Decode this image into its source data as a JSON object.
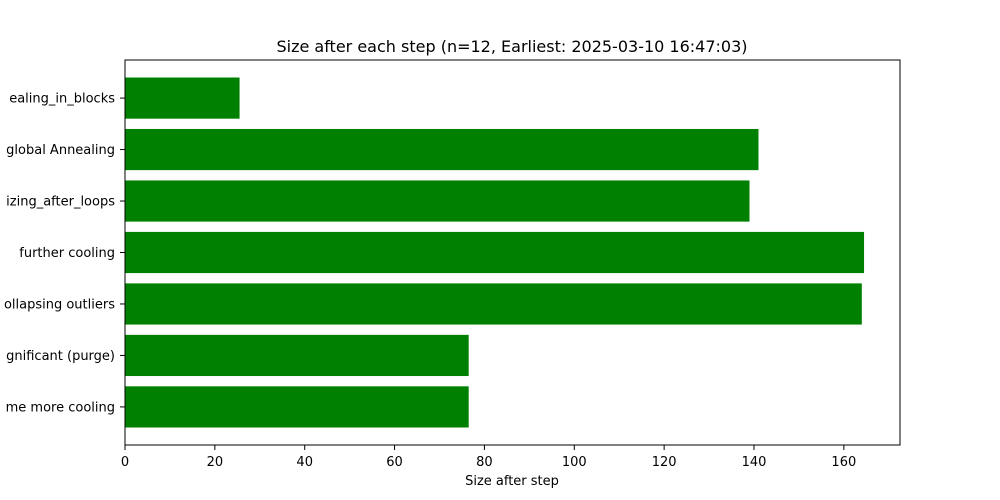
{
  "chart_data": {
    "type": "bar",
    "orientation": "horizontal",
    "title": "Size after each step (n=12, Earliest: 2025-03-10 16:47:03)",
    "xlabel": "Size after step",
    "ylabel": "",
    "categories": [
      "ealing_in_blocks",
      "global Annealing",
      "izing_after_loops",
      "further cooling",
      "ollapsing outliers",
      "gnificant (purge)",
      "me more cooling"
    ],
    "values": [
      25.5,
      141,
      139,
      164.5,
      164,
      76.5,
      76.5
    ],
    "xlim": [
      0,
      172.5
    ],
    "xticks": [
      0,
      20,
      40,
      60,
      80,
      100,
      120,
      140,
      160
    ],
    "grid": false,
    "legend": "none",
    "colors": {
      "bar": "#008000",
      "axis": "#000000",
      "background": "#ffffff"
    }
  }
}
